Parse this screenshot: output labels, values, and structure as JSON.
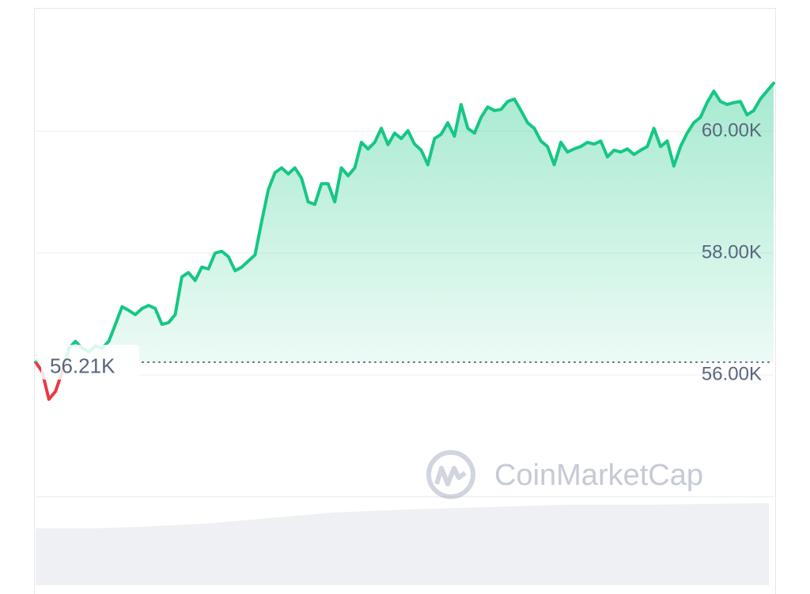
{
  "chart_data": {
    "type": "line",
    "values": [
      56210,
      56050,
      55600,
      55730,
      56050,
      56440,
      56550,
      56440,
      56380,
      56470,
      56440,
      56550,
      56830,
      57120,
      57060,
      56990,
      57090,
      57140,
      57090,
      56830,
      56860,
      56990,
      57610,
      57680,
      57550,
      57770,
      57740,
      58000,
      58030,
      57940,
      57710,
      57770,
      57870,
      57970,
      58520,
      59040,
      59320,
      59400,
      59300,
      59400,
      59230,
      58840,
      58800,
      59140,
      59140,
      58840,
      59400,
      59270,
      59400,
      59820,
      59710,
      59820,
      60050,
      59780,
      59970,
      59880,
      60010,
      59790,
      59690,
      59450,
      59880,
      59950,
      60140,
      59920,
      60440,
      60050,
      59970,
      60230,
      60400,
      60340,
      60360,
      60490,
      60530,
      60340,
      60140,
      60050,
      59840,
      59750,
      59450,
      59820,
      59660,
      59710,
      59750,
      59820,
      59790,
      59840,
      59580,
      59690,
      59660,
      59710,
      59620,
      59690,
      59750,
      60050,
      59750,
      59840,
      59430,
      59750,
      59970,
      60140,
      60230,
      60470,
      60660,
      60490,
      60440,
      60470,
      60490,
      60270,
      60340,
      60530,
      60660,
      60790
    ],
    "color": "#16c784",
    "down_color": "#ea3943",
    "ylim": [
      54000,
      62000
    ],
    "yticks": [
      {
        "value": 56000,
        "label": "56.00K"
      },
      {
        "value": 58000,
        "label": "58.00K"
      },
      {
        "value": 60000,
        "label": "60.00K"
      }
    ],
    "grid": true,
    "baseline": {
      "value": 56210,
      "label": "56.21K"
    },
    "watermark": "CoinMarketCap"
  }
}
